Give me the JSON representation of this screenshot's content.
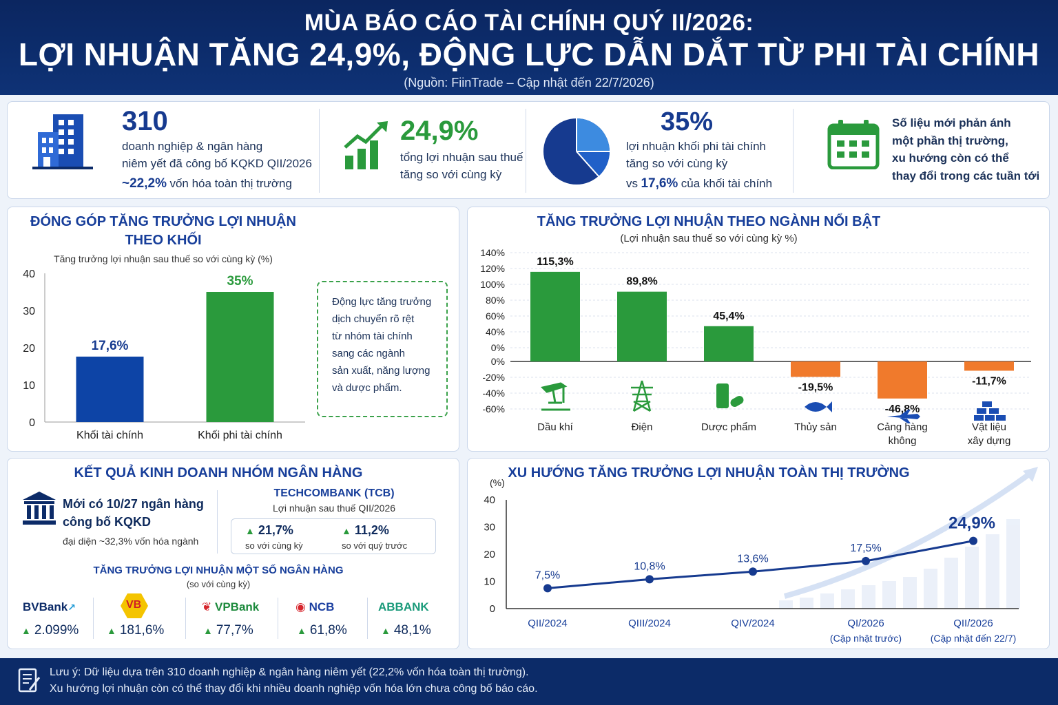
{
  "header": {
    "title_line1": "MÙA BÁO CÁO TÀI CHÍNH QUÝ II/2026:",
    "title_line2": "LỢI NHUẬN TĂNG 24,9%, ĐỘNG LỰC DẪN DẮT TỪ PHI TÀI CHÍNH",
    "source": "(Nguồn: FiinTrade – Cập nhật đến 22/7/2026)"
  },
  "stats": {
    "s1": {
      "value": "310",
      "line1": "doanh nghiệp & ngân hàng",
      "line2": "niêm yết đã công bố KQKD QII/2026",
      "pct": "~22,2%",
      "line3": "vốn hóa toàn thị trường"
    },
    "s2": {
      "value": "24,9%",
      "line1": "tổng lợi nhuận sau thuế",
      "line2": "tăng so với cùng kỳ"
    },
    "s3": {
      "value": "35%",
      "line1": "lợi nhuận khối phi tài chính",
      "line2": "tăng so với cùng kỳ",
      "vs": "vs",
      "pct": "17,6%",
      "line3": "của khối tài chính"
    },
    "s4": {
      "line1": "Số liệu mới phản ánh",
      "line2": "một phần thị trường,",
      "line3": "xu hướng còn có thể",
      "line4": "thay đổi trong các tuần tới"
    }
  },
  "colors": {
    "navy": "#0c2b68",
    "blue": "#163a8f",
    "green": "#2a9a3c",
    "orange": "#f07a2c",
    "finance_blue": "#0d44a6"
  },
  "icons": [
    "building-icon",
    "growth-chart-icon",
    "pie-chart-icon",
    "calendar-icon",
    "bank-icon",
    "oil-pump-icon",
    "power-tower-icon",
    "pills-icon",
    "fish-icon",
    "airplane-icon",
    "bricks-icon",
    "note-icon"
  ],
  "block_panel": {
    "title_line1": "ĐÓNG GÓP TĂNG TRƯỞNG LỢI NHUẬN",
    "title_line2": "THEO KHỐI",
    "subtitle": "Tăng trưởng lợi nhuận sau thuế so với cùng kỳ (%)",
    "note": [
      "Động lực tăng trưởng",
      "dịch chuyển rõ rệt",
      "từ nhóm tài chính",
      "sang các ngành",
      "sản xuất, năng lượng",
      "và dược phẩm."
    ]
  },
  "sector_panel": {
    "title": "TĂNG TRƯỞNG LỢI NHUẬN THEO NGÀNH NỔI BẬT",
    "subtitle": "(Lợi nhuận sau thuế so với cùng kỳ %)"
  },
  "bank_panel": {
    "title": "KẾT QUẢ KINH DOANH NHÓM NGÂN HÀNG",
    "line1": "Mới có 10/27 ngân hàng",
    "line2": "công bố KQKD",
    "line3": "đại diện ~32,3% vốn hóa ngành",
    "tcb_title": "TECHCOMBANK (TCB)",
    "tcb_sub": "Lợi nhuận sau thuế QII/2026",
    "tcb_yoy": "21,7%",
    "tcb_yoy_label": "so với cùng kỳ",
    "tcb_qoq": "11,2%",
    "tcb_qoq_label": "so với quý trước",
    "growth_title": "TĂNG TRƯỞNG LỢI NHUẬN MỘT SỐ NGÂN HÀNG",
    "growth_sub": "(so với cùng kỳ)",
    "banks": [
      {
        "name": "BVBank",
        "value": "2.099%"
      },
      {
        "name": "VB",
        "value": "181,6%"
      },
      {
        "name": "VPBank",
        "value": "77,7%"
      },
      {
        "name": "NCB",
        "value": "61,8%"
      },
      {
        "name": "ABBANK",
        "value": "48,1%"
      }
    ]
  },
  "trend_panel": {
    "title": "XU HƯỚNG TĂNG TRƯỞNG LỢI NHUẬN TOÀN THỊ TRƯỜNG"
  },
  "footer": {
    "line1": "Lưu ý: Dữ liệu dựa trên 310 doanh nghiệp & ngân hàng niêm yết (22,2% vốn hóa toàn thị trường).",
    "line2": "Xu hướng lợi nhuận còn có thể thay đổi khi nhiều doanh nghiệp vốn hóa lớn chưa công bố báo cáo."
  },
  "chart_data": [
    {
      "type": "bar",
      "title": "ĐÓNG GÓP TĂNG TRƯỞNG LỢI NHUẬN THEO KHỐI",
      "subtitle": "Tăng trưởng lợi nhuận sau thuế so với cùng kỳ (%)",
      "categories": [
        "Khối tài chính",
        "Khối phi tài chính"
      ],
      "values": [
        17.6,
        35
      ],
      "labels": [
        "17,6%",
        "35%"
      ],
      "colors": [
        "#0d44a6",
        "#2a9a3c"
      ],
      "ylim": [
        0,
        40
      ],
      "yticks": [
        "0",
        "10",
        "20",
        "30",
        "40"
      ]
    },
    {
      "type": "bar",
      "title": "TĂNG TRƯỞNG LỢI NHUẬN THEO NGÀNH NỔI BẬT",
      "subtitle": "(Lợi nhuận sau thuế so với cùng kỳ %)",
      "categories": [
        "Dầu khí",
        "Điện",
        "Dược phẩm",
        "Thủy sản",
        "Cảng hàng không",
        "Vật liệu xây dựng"
      ],
      "values": [
        115.3,
        89.8,
        45.4,
        -19.5,
        -46.8,
        -11.7
      ],
      "labels": [
        "115,3%",
        "89,8%",
        "45,4%",
        "-19,5%",
        "-46,8%",
        "-11,7%"
      ],
      "yticks": [
        "140%",
        "120%",
        "100%",
        "80%",
        "60%",
        "40%",
        "0%",
        "0%",
        "-20%",
        "-40%",
        "-60%"
      ],
      "ylim": [
        -60,
        140
      ],
      "grid": true
    },
    {
      "type": "line",
      "title": "XU HƯỚNG TĂNG TRƯỞNG LỢI NHUẬN TOÀN THỊ TRƯỜNG",
      "ylabel": "(%)",
      "categories": [
        "QII/2024",
        "QIII/2024",
        "QIV/2024",
        "QI/2026",
        "QII/2026"
      ],
      "category_notes": [
        "",
        "",
        "",
        "(Cập nhật trước)",
        "(Cập nhật đến 22/7)"
      ],
      "values": [
        7.5,
        10.8,
        13.6,
        17.5,
        24.9
      ],
      "labels": [
        "7,5%",
        "10,8%",
        "13,6%",
        "17,5%",
        "24,9%"
      ],
      "ylim": [
        0,
        40
      ],
      "yticks": [
        "0",
        "10",
        "20",
        "30",
        "40"
      ]
    }
  ]
}
